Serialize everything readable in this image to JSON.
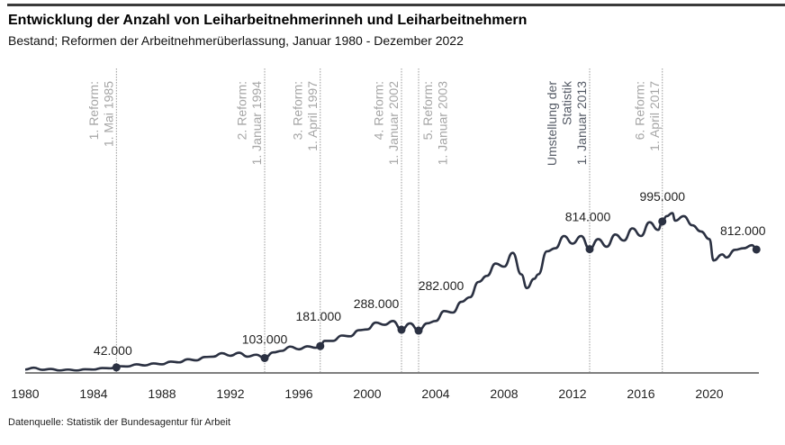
{
  "header": {
    "title": "Entwicklung der Anzahl von Leiharbeitnehmerinneh und Leiharbeitnehmern",
    "subtitle": "Bestand; Reformen der Arbeitnehmerüberlassung, Januar 1980 - Dezember 2022"
  },
  "footer": {
    "source": "Datenquelle: Statistik der Bundesagentur für Arbeit"
  },
  "chart_data": {
    "type": "line",
    "title": "Entwicklung der Anzahl von Leiharbeitnehmerinneh und Leiharbeitnehmern",
    "subtitle": "Bestand; Reformen der Arbeitnehmerüberlassung, Januar 1980 - Dezember 2022",
    "xlabel": "",
    "ylabel": "",
    "xlim": [
      1980,
      2023
    ],
    "ylim": [
      0,
      1100000
    ],
    "x_ticks": [
      "1980",
      "1984",
      "1988",
      "1992",
      "1996",
      "2000",
      "2004",
      "2008",
      "2012",
      "2016",
      "2020"
    ],
    "grid": false,
    "colors": {
      "line": "#2b3142",
      "reform_text": "#a6a6a6",
      "statistik_text": "#555b66",
      "marker_line": "#999999"
    },
    "series": [
      {
        "points": [
          [
            "1980-01",
            28000
          ],
          [
            "1980-07",
            40000
          ],
          [
            "1981-01",
            26000
          ],
          [
            "1981-07",
            32000
          ],
          [
            "1982-01",
            22000
          ],
          [
            "1982-07",
            28000
          ],
          [
            "1983-01",
            22000
          ],
          [
            "1983-07",
            30000
          ],
          [
            "1984-01",
            28000
          ],
          [
            "1984-07",
            38000
          ],
          [
            "1985-01",
            36000
          ],
          [
            "1985-04",
            42000
          ],
          [
            "1985-07",
            50000
          ],
          [
            "1986-01",
            48000
          ],
          [
            "1986-07",
            62000
          ],
          [
            "1987-01",
            55000
          ],
          [
            "1987-07",
            68000
          ],
          [
            "1988-01",
            62000
          ],
          [
            "1988-07",
            80000
          ],
          [
            "1989-01",
            75000
          ],
          [
            "1989-07",
            95000
          ],
          [
            "1990-01",
            88000
          ],
          [
            "1990-07",
            110000
          ],
          [
            "1991-01",
            112000
          ],
          [
            "1991-07",
            135000
          ],
          [
            "1992-01",
            118000
          ],
          [
            "1992-07",
            138000
          ],
          [
            "1993-01",
            112000
          ],
          [
            "1993-07",
            125000
          ],
          [
            "1994-01",
            103000
          ],
          [
            "1994-07",
            140000
          ],
          [
            "1995-01",
            150000
          ],
          [
            "1995-07",
            178000
          ],
          [
            "1996-01",
            160000
          ],
          [
            "1996-07",
            180000
          ],
          [
            "1997-01",
            170000
          ],
          [
            "1997-04",
            181000
          ],
          [
            "1997-07",
            215000
          ],
          [
            "1998-01",
            215000
          ],
          [
            "1998-07",
            250000
          ],
          [
            "1999-01",
            245000
          ],
          [
            "1999-07",
            285000
          ],
          [
            "2000-01",
            290000
          ],
          [
            "2000-07",
            335000
          ],
          [
            "2001-01",
            320000
          ],
          [
            "2001-07",
            345000
          ],
          [
            "2002-01",
            288000
          ],
          [
            "2002-07",
            330000
          ],
          [
            "2003-01",
            282000
          ],
          [
            "2003-07",
            330000
          ],
          [
            "2004-01",
            345000
          ],
          [
            "2004-07",
            410000
          ],
          [
            "2005-01",
            400000
          ],
          [
            "2005-07",
            470000
          ],
          [
            "2006-01",
            500000
          ],
          [
            "2006-07",
            600000
          ],
          [
            "2007-01",
            640000
          ],
          [
            "2007-07",
            720000
          ],
          [
            "2008-01",
            700000
          ],
          [
            "2008-07",
            790000
          ],
          [
            "2009-01",
            650000
          ],
          [
            "2009-05",
            560000
          ],
          [
            "2009-10",
            620000
          ],
          [
            "2010-01",
            650000
          ],
          [
            "2010-07",
            800000
          ],
          [
            "2011-01",
            820000
          ],
          [
            "2011-07",
            900000
          ],
          [
            "2012-01",
            850000
          ],
          [
            "2012-07",
            900000
          ],
          [
            "2013-01",
            814000
          ],
          [
            "2013-07",
            880000
          ],
          [
            "2014-01",
            830000
          ],
          [
            "2014-07",
            910000
          ],
          [
            "2015-01",
            870000
          ],
          [
            "2015-07",
            950000
          ],
          [
            "2016-01",
            900000
          ],
          [
            "2016-07",
            990000
          ],
          [
            "2017-01",
            940000
          ],
          [
            "2017-04",
            995000
          ],
          [
            "2017-07",
            1030000
          ],
          [
            "2017-11",
            1050000
          ],
          [
            "2018-01",
            1000000
          ],
          [
            "2018-07",
            1030000
          ],
          [
            "2019-01",
            970000
          ],
          [
            "2019-07",
            930000
          ],
          [
            "2020-01",
            880000
          ],
          [
            "2020-04",
            740000
          ],
          [
            "2020-10",
            780000
          ],
          [
            "2021-01",
            760000
          ],
          [
            "2021-07",
            810000
          ],
          [
            "2022-01",
            820000
          ],
          [
            "2022-07",
            840000
          ],
          [
            "2022-10",
            812000
          ]
        ]
      }
    ],
    "highlights": [
      {
        "date": "1985-05",
        "value": 42000,
        "label": "42.000"
      },
      {
        "date": "1994-01",
        "value": 103000,
        "label": "103.000"
      },
      {
        "date": "1997-04",
        "value": 181000,
        "label": "181.000"
      },
      {
        "date": "2002-01",
        "value": 288000,
        "label": "288.000"
      },
      {
        "date": "2003-01",
        "value": 282000,
        "label": "282.000"
      },
      {
        "date": "2013-01",
        "value": 814000,
        "label": "814.000"
      },
      {
        "date": "2017-04",
        "value": 995000,
        "label": "995.000"
      },
      {
        "date": "2022-10",
        "value": 812000,
        "label": "812.000"
      }
    ],
    "annotations": [
      {
        "date": "1985-05",
        "lines": [
          "1. Reform:",
          "1. Mai 1985"
        ],
        "kind": "reform"
      },
      {
        "date": "1994-01",
        "lines": [
          "2. Reform:",
          "1. Januar 1994"
        ],
        "kind": "reform"
      },
      {
        "date": "1997-04",
        "lines": [
          "3. Reform:",
          "1. April 1997"
        ],
        "kind": "reform"
      },
      {
        "date": "2002-01",
        "lines": [
          "4. Reform:",
          "1. Januar 2002"
        ],
        "kind": "reform"
      },
      {
        "date": "2003-01",
        "lines": [
          "5. Reform:",
          "1. Januar 2003"
        ],
        "kind": "reform"
      },
      {
        "date": "2013-01",
        "lines": [
          "Umstellung der",
          "Statistik",
          "1. Januar 2013"
        ],
        "kind": "statistik"
      },
      {
        "date": "2017-04",
        "lines": [
          "6. Reform:",
          "1. April 2017"
        ],
        "kind": "reform"
      }
    ]
  }
}
